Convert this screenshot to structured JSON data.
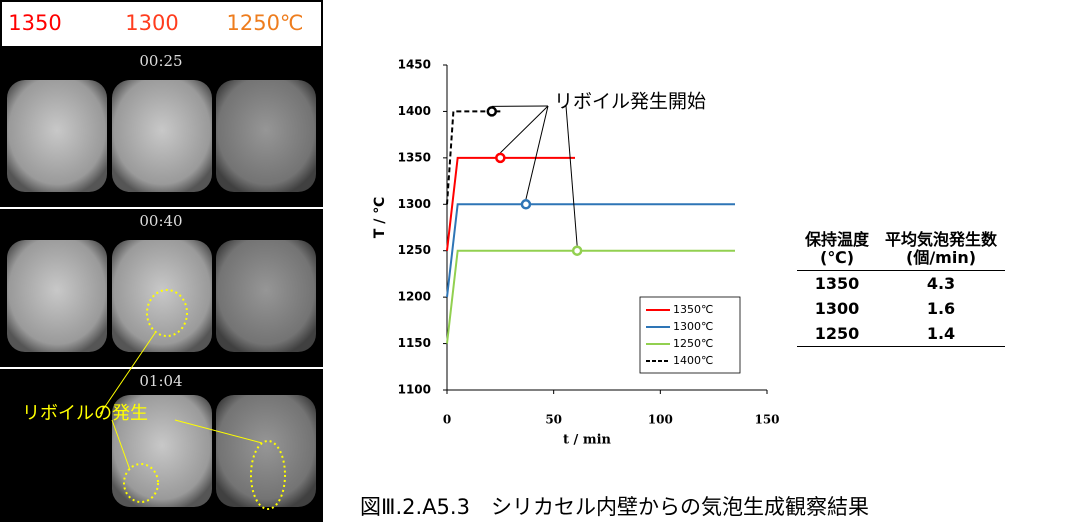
{
  "photo_panel": {
    "temperatures": [
      {
        "label": "1350",
        "color": "#ff0000"
      },
      {
        "label": "1300",
        "color": "#ff3c1e"
      },
      {
        "label": "1250℃",
        "color": "#ee7d1e"
      }
    ],
    "times": [
      "00:25",
      "00:40",
      "01:04"
    ],
    "annotation": "リボイルの発生"
  },
  "chart_data": {
    "type": "line",
    "xlabel": "t / min",
    "ylabel": "T / ℃",
    "annotation": "リボイル発生開始",
    "xlim": [
      0,
      150
    ],
    "xticks": [
      0,
      50,
      100,
      150
    ],
    "ylim": [
      1100,
      1450
    ],
    "yticks": [
      1100,
      1150,
      1200,
      1250,
      1300,
      1350,
      1400,
      1450
    ],
    "series": [
      {
        "name": "1350℃",
        "color": "#ff0000",
        "dash": false,
        "x": [
          0,
          5,
          60
        ],
        "values": [
          1250,
          1350,
          1350
        ],
        "onset": {
          "x": 25,
          "y": 1350
        }
      },
      {
        "name": "1300℃",
        "color": "#2e75b6",
        "dash": false,
        "x": [
          0,
          5,
          135
        ],
        "values": [
          1200,
          1300,
          1300
        ],
        "onset": {
          "x": 37,
          "y": 1300
        }
      },
      {
        "name": "1250℃",
        "color": "#92d050",
        "dash": false,
        "x": [
          0,
          5,
          135
        ],
        "values": [
          1150,
          1250,
          1250
        ],
        "onset": {
          "x": 61,
          "y": 1250
        }
      },
      {
        "name": "1400℃",
        "color": "#000000",
        "dash": true,
        "x": [
          0,
          3,
          25
        ],
        "values": [
          1300,
          1400,
          1400
        ],
        "onset": {
          "x": 21,
          "y": 1400
        }
      }
    ]
  },
  "table": {
    "header": [
      [
        "保持温度",
        "(℃)"
      ],
      [
        "平均気泡発生数",
        "(個/min)"
      ]
    ],
    "rows": [
      [
        1350,
        4.3
      ],
      [
        1300,
        1.6
      ],
      [
        1250,
        1.4
      ]
    ]
  },
  "caption": "図Ⅲ.2.A5.3　シリカセル内壁からの気泡生成観察結果"
}
